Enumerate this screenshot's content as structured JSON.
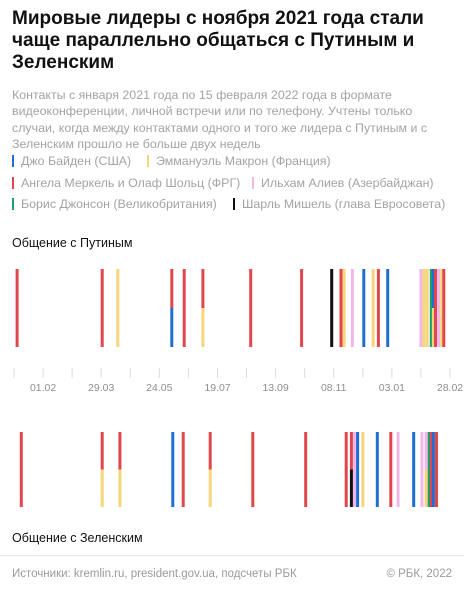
{
  "title": "Мировые лидеры с ноября 2021 года стали чаще параллельно общаться с Путиным и Зеленским",
  "subtitle": "Контакты с января 2021 года по 15 февраля 2022 года в формате видеоконференции, личной встречи или по телефону. Учтены только случаи, когда между контактами одного и того же лидера с Путиным и с Зеленским прошло не больше двух недель",
  "legend": [
    {
      "label": "Джо Байден (США)",
      "color": "#1f6fd1",
      "key": "biden"
    },
    {
      "label": "Эммануэль Макрон (Франция)",
      "color": "#f5d77a",
      "key": "macron"
    },
    {
      "label": "Ангела Меркель и Олаф Шольц (ФРГ)",
      "color": "#e0474c",
      "key": "germany"
    },
    {
      "label": "Ильхам Алиев (Азербайджан)",
      "color": "#f0b8e8",
      "key": "aliyev"
    },
    {
      "label": "Борис Джонсон (Великобритания)",
      "color": "#1e9e6e",
      "key": "johnson"
    },
    {
      "label": "Шарль Мишель (глава Евросовета)",
      "color": "#111111",
      "key": "michel"
    }
  ],
  "section_putin": "Общение с Путиным",
  "section_zelensky": "Общение с Зеленским",
  "footer_source": "Источники: kremlin.ru, president.gov.ua, подсчеты РБК",
  "footer_copyright": "© РБК, 2022",
  "chart_data": {
    "type": "timeline",
    "x_ticks": [
      "01.02",
      "29.03",
      "24.05",
      "19.07",
      "13.09",
      "08.11",
      "03.01",
      "28.02"
    ],
    "x_range": [
      "2021-01-04",
      "2022-02-28"
    ],
    "putin": [
      {
        "date": "2021-01-07",
        "segments": [
          "germany"
        ]
      },
      {
        "date": "2021-03-30",
        "segments": [
          "germany"
        ]
      },
      {
        "date": "2021-04-14",
        "segments": [
          "macron"
        ]
      },
      {
        "date": "2021-06-05",
        "segments": [
          "germany",
          "biden"
        ]
      },
      {
        "date": "2021-06-17",
        "segments": [
          "germany"
        ]
      },
      {
        "date": "2021-07-05",
        "segments": [
          "germany",
          "macron"
        ]
      },
      {
        "date": "2021-08-20",
        "segments": [
          "germany"
        ]
      },
      {
        "date": "2021-10-08",
        "segments": [
          "germany"
        ]
      },
      {
        "date": "2021-11-06",
        "segments": [
          "michel"
        ]
      },
      {
        "date": "2021-11-15",
        "segments": [
          "germany"
        ]
      },
      {
        "date": "2021-11-18",
        "segments": [
          "macron"
        ]
      },
      {
        "date": "2021-11-26",
        "segments": [
          "aliyev"
        ]
      },
      {
        "date": "2021-12-07",
        "segments": [
          "biden"
        ]
      },
      {
        "date": "2021-12-16",
        "segments": [
          "macron"
        ]
      },
      {
        "date": "2021-12-21",
        "segments": [
          "germany"
        ]
      },
      {
        "date": "2021-12-30",
        "segments": [
          "biden"
        ]
      },
      {
        "date": "2022-01-31",
        "segments": [
          "aliyev"
        ]
      },
      {
        "date": "2022-02-03",
        "segments": [
          "macron"
        ]
      },
      {
        "date": "2022-02-06",
        "segments": [
          "macron"
        ]
      },
      {
        "date": "2022-02-10",
        "segments": [
          "johnson"
        ]
      },
      {
        "date": "2022-02-12",
        "segments": [
          "biden",
          "macron"
        ]
      },
      {
        "date": "2022-02-14",
        "segments": [
          "germany"
        ]
      },
      {
        "date": "2022-02-17",
        "segments": [
          "aliyev"
        ]
      },
      {
        "date": "2022-02-20",
        "segments": [
          "macron"
        ]
      },
      {
        "date": "2022-02-22",
        "segments": [
          "germany"
        ]
      }
    ],
    "zelensky": [
      {
        "date": "2021-01-11",
        "segments": [
          "germany"
        ]
      },
      {
        "date": "2021-03-30",
        "segments": [
          "germany",
          "macron"
        ]
      },
      {
        "date": "2021-04-16",
        "segments": [
          "germany",
          "macron"
        ]
      },
      {
        "date": "2021-06-06",
        "segments": [
          "biden"
        ]
      },
      {
        "date": "2021-06-16",
        "segments": [
          "germany"
        ]
      },
      {
        "date": "2021-07-12",
        "segments": [
          "germany",
          "macron"
        ]
      },
      {
        "date": "2021-08-22",
        "segments": [
          "germany"
        ]
      },
      {
        "date": "2021-10-12",
        "segments": [
          "germany"
        ]
      },
      {
        "date": "2021-11-20",
        "segments": [
          "germany"
        ]
      },
      {
        "date": "2021-11-25",
        "segments": [
          "germany",
          "michel"
        ]
      },
      {
        "date": "2021-11-28",
        "segments": [
          "aliyev"
        ]
      },
      {
        "date": "2021-12-01",
        "segments": [
          "biden"
        ]
      },
      {
        "date": "2021-12-06",
        "segments": [
          "macron"
        ]
      },
      {
        "date": "2021-12-20",
        "segments": [
          "biden"
        ]
      },
      {
        "date": "2022-01-02",
        "segments": [
          "germany"
        ]
      },
      {
        "date": "2022-01-09",
        "segments": [
          "aliyev"
        ]
      },
      {
        "date": "2022-01-24",
        "segments": [
          "biden"
        ]
      },
      {
        "date": "2022-02-01",
        "segments": [
          "aliyev"
        ]
      },
      {
        "date": "2022-02-05",
        "segments": [
          "aliyev",
          "macron"
        ]
      },
      {
        "date": "2022-02-08",
        "segments": [
          "johnson"
        ]
      },
      {
        "date": "2022-02-10",
        "segments": [
          "germany"
        ]
      },
      {
        "date": "2022-02-12",
        "segments": [
          "biden"
        ]
      },
      {
        "date": "2022-02-15",
        "segments": [
          "germany"
        ]
      }
    ]
  }
}
